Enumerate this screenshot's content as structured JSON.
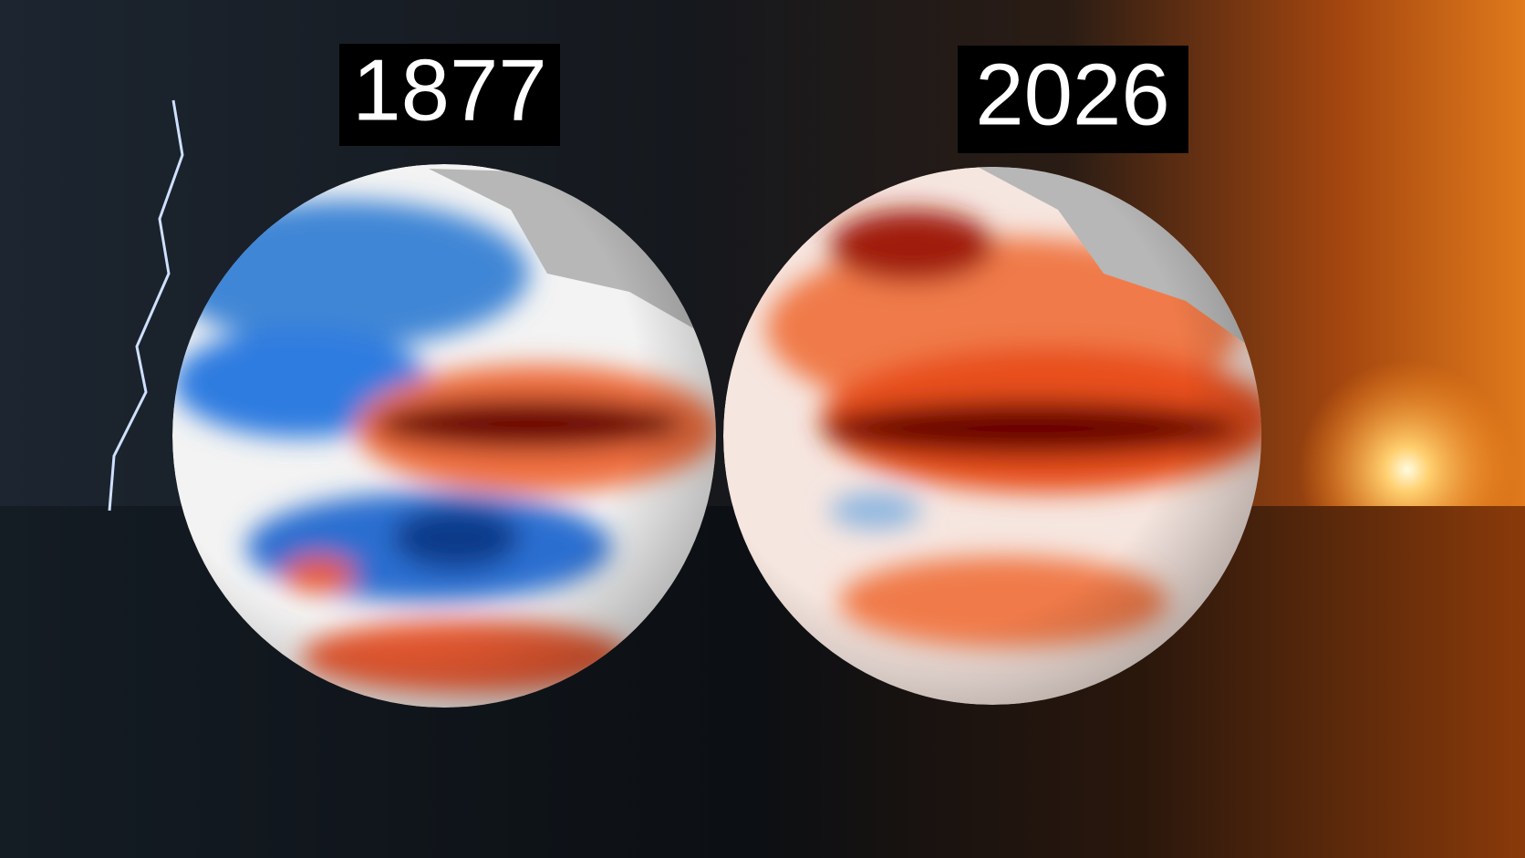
{
  "panels": [
    {
      "year": "1877"
    },
    {
      "year": "2026"
    }
  ]
}
